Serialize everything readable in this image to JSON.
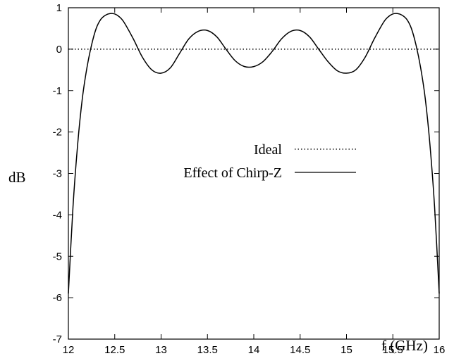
{
  "chart_data": {
    "type": "line",
    "xlabel": "f (GHz)",
    "ylabel": "dB",
    "xlim": [
      12,
      16
    ],
    "ylim": [
      -7,
      1
    ],
    "x_ticks": [
      "12",
      "12.5",
      "13",
      "13.5",
      "14",
      "14.5",
      "15",
      "15.5",
      "16"
    ],
    "y_ticks": [
      "1",
      "0",
      "-1",
      "-2",
      "-3",
      "-4",
      "-5",
      "-6",
      "-7"
    ],
    "grid": false,
    "legend_position": "center-right",
    "series": [
      {
        "name": "Ideal",
        "style": "dotted",
        "color": "#000000",
        "x": [
          12,
          16
        ],
        "y": [
          0,
          0
        ]
      },
      {
        "name": "Effect of Chirp-Z",
        "style": "solid",
        "color": "#000000",
        "x": [
          12.0,
          12.05,
          12.1,
          12.15,
          12.2,
          12.25,
          12.3,
          12.35,
          12.4,
          12.45,
          12.5,
          12.55,
          12.6,
          12.7,
          12.8,
          12.9,
          13.0,
          13.1,
          13.2,
          13.3,
          13.4,
          13.5,
          13.6,
          13.7,
          13.8,
          13.9,
          14.0,
          14.1,
          14.2,
          14.3,
          14.4,
          14.5,
          14.6,
          14.7,
          14.8,
          14.9,
          15.0,
          15.1,
          15.2,
          15.3,
          15.4,
          15.45,
          15.5,
          15.55,
          15.6,
          15.65,
          15.7,
          15.75,
          15.8,
          15.85,
          15.9,
          15.95,
          16.0
        ],
        "y": [
          -5.9,
          -3.8,
          -2.3,
          -1.2,
          -0.45,
          0.1,
          0.5,
          0.72,
          0.82,
          0.86,
          0.85,
          0.78,
          0.65,
          0.25,
          -0.2,
          -0.5,
          -0.58,
          -0.45,
          -0.1,
          0.25,
          0.43,
          0.45,
          0.3,
          0.0,
          -0.28,
          -0.42,
          -0.42,
          -0.3,
          -0.05,
          0.25,
          0.43,
          0.45,
          0.3,
          0.0,
          -0.3,
          -0.52,
          -0.58,
          -0.5,
          -0.2,
          0.25,
          0.65,
          0.78,
          0.85,
          0.86,
          0.82,
          0.72,
          0.5,
          0.1,
          -0.45,
          -1.2,
          -2.3,
          -3.8,
          -5.9
        ]
      }
    ]
  }
}
